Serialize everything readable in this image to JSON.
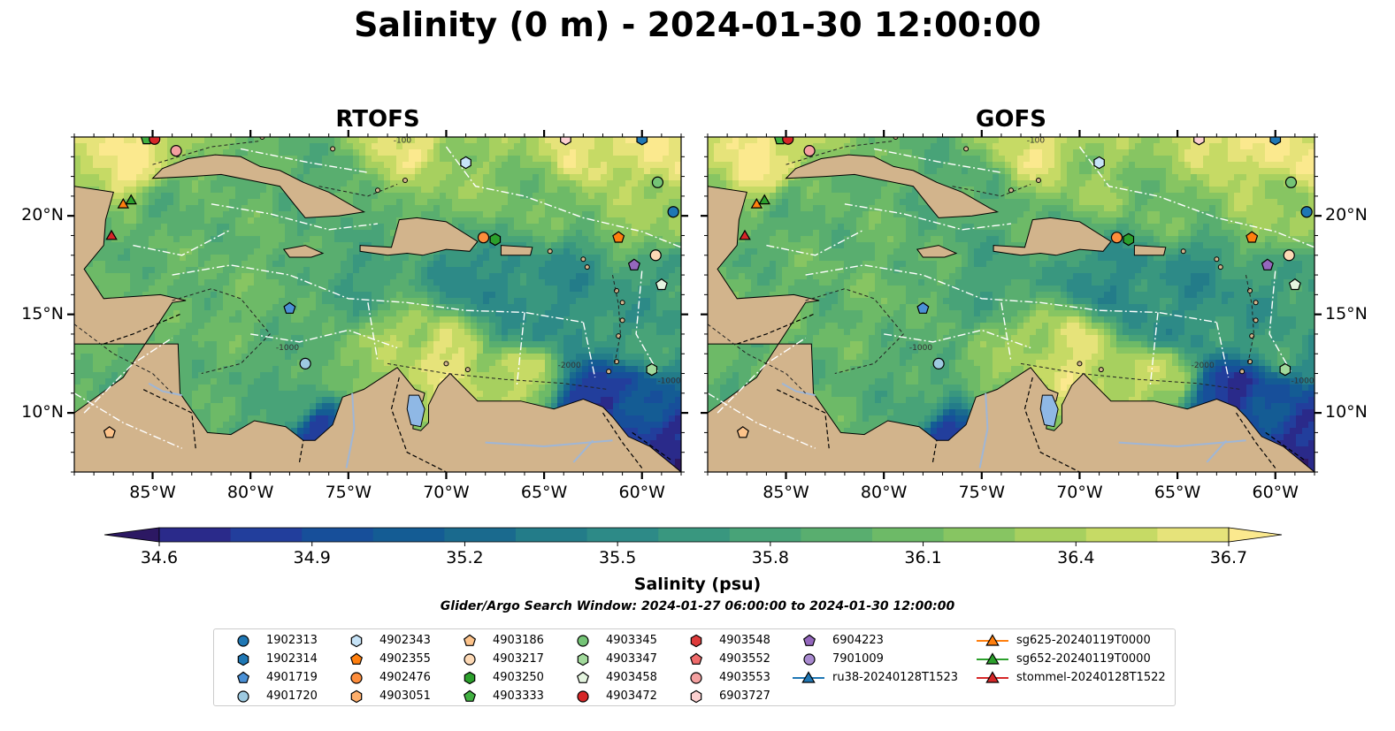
{
  "title": "Salinity (0 m) - 2024-01-30 12:00:00",
  "panels": [
    {
      "title": "RTOFS"
    },
    {
      "title": "GOFS"
    }
  ],
  "map": {
    "lon_range": [
      -89,
      -58
    ],
    "lat_range": [
      7,
      24
    ],
    "lon_ticks": [
      "85°W",
      "80°W",
      "75°W",
      "70°W",
      "65°W",
      "60°W"
    ],
    "lat_ticks": [
      "20°N",
      "15°N",
      "10°N"
    ],
    "land_color": "#d2b48c",
    "water_color": "#8fb8e5",
    "contour_labels": [
      "-100",
      "-1000",
      "-2000"
    ]
  },
  "colorbar": {
    "label": "Salinity (psu)",
    "ticks": [
      "34.6",
      "34.9",
      "35.2",
      "35.5",
      "35.8",
      "36.1",
      "36.4",
      "36.7"
    ],
    "colors": [
      "#2c1863",
      "#2a2a8a",
      "#223e9c",
      "#174f9a",
      "#145c94",
      "#1a6a8e",
      "#237c89",
      "#2d8a87",
      "#39977f",
      "#48a378",
      "#59ae6f",
      "#6dba67",
      "#87c562",
      "#a7d05f",
      "#c6da65",
      "#e6e37a",
      "#fbe98e"
    ]
  },
  "search_window": "Glider/Argo Search Window: 2024-01-27 06:00:00 to 2024-01-30 12:00:00",
  "legend": [
    {
      "label": "1902313",
      "marker": "circle",
      "color": "#1f77b4"
    },
    {
      "label": "1902314",
      "marker": "hexagon",
      "color": "#1f77b4"
    },
    {
      "label": "4901719",
      "marker": "pentagon",
      "color": "#4a90d6"
    },
    {
      "label": "4901720",
      "marker": "circle",
      "color": "#9ecae1"
    },
    {
      "label": "4902343",
      "marker": "hexagon",
      "color": "#c6e3f7"
    },
    {
      "label": "4902355",
      "marker": "pentagon",
      "color": "#ff7f0e"
    },
    {
      "label": "4902476",
      "marker": "circle",
      "color": "#fd8d3c"
    },
    {
      "label": "4903051",
      "marker": "hexagon",
      "color": "#fdae6b"
    },
    {
      "label": "4903186",
      "marker": "pentagon",
      "color": "#fdc38a"
    },
    {
      "label": "4903217",
      "marker": "circle",
      "color": "#fdd9b5"
    },
    {
      "label": "4903250",
      "marker": "hexagon",
      "color": "#2ca02c"
    },
    {
      "label": "4903333",
      "marker": "pentagon",
      "color": "#41b041"
    },
    {
      "label": "4903345",
      "marker": "circle",
      "color": "#74c476"
    },
    {
      "label": "4903347",
      "marker": "hexagon",
      "color": "#a1d99b"
    },
    {
      "label": "4903458",
      "marker": "pentagon",
      "color": "#e5f5e0"
    },
    {
      "label": "4903472",
      "marker": "circle",
      "color": "#d62728"
    },
    {
      "label": "4903548",
      "marker": "hexagon",
      "color": "#de3b3b"
    },
    {
      "label": "4903552",
      "marker": "pentagon",
      "color": "#f06b6b"
    },
    {
      "label": "4903553",
      "marker": "circle",
      "color": "#f4a0a0"
    },
    {
      "label": "6903727",
      "marker": "hexagon",
      "color": "#fcd0d0"
    },
    {
      "label": "6904223",
      "marker": "pentagon",
      "color": "#9467bd"
    },
    {
      "label": "7901009",
      "marker": "circle",
      "color": "#a98ad0"
    },
    {
      "label": "ru38-20240128T1523",
      "marker": "triangle-line",
      "color": "#1f77b4"
    },
    {
      "label": "sg625-20240119T0000",
      "marker": "triangle-line",
      "color": "#ff7f0e"
    },
    {
      "label": "sg652-20240119T0000",
      "marker": "triangle-line",
      "color": "#2ca02c"
    },
    {
      "label": "stommel-20240128T1522",
      "marker": "triangle-line",
      "color": "#d62728"
    }
  ],
  "observations": [
    {
      "id": "1902313",
      "lon": -58.4,
      "lat": 20.2
    },
    {
      "id": "1902314",
      "lon": -60.0,
      "lat": 23.9
    },
    {
      "id": "4901719",
      "lon": -78.0,
      "lat": 15.3
    },
    {
      "id": "4901720",
      "lon": -77.2,
      "lat": 12.5
    },
    {
      "id": "4902343",
      "lon": -69.0,
      "lat": 22.7
    },
    {
      "id": "4902355",
      "lon": -61.2,
      "lat": 18.9
    },
    {
      "id": "4902476",
      "lon": -68.1,
      "lat": 18.9
    },
    {
      "id": "4903186",
      "lon": -87.2,
      "lat": 9.0
    },
    {
      "id": "4903217",
      "lon": -59.3,
      "lat": 18.0
    },
    {
      "id": "4903250",
      "lon": -67.5,
      "lat": 18.8
    },
    {
      "id": "4903333",
      "lon": -85.3,
      "lat": 23.9
    },
    {
      "id": "4903345",
      "lon": -59.2,
      "lat": 21.7
    },
    {
      "id": "4903347",
      "lon": -59.5,
      "lat": 12.2
    },
    {
      "id": "4903458",
      "lon": -59.0,
      "lat": 16.5
    },
    {
      "id": "4903472",
      "lon": -84.9,
      "lat": 23.9
    },
    {
      "id": "4903553",
      "lon": -83.8,
      "lat": 23.3
    },
    {
      "id": "6903727",
      "lon": -63.9,
      "lat": 23.9
    },
    {
      "id": "6904223",
      "lon": -60.4,
      "lat": 17.5
    },
    {
      "id": "sg625-20240119T0000",
      "lon": -86.5,
      "lat": 20.6
    },
    {
      "id": "sg652-20240119T0000",
      "lon": -86.1,
      "lat": 20.8
    },
    {
      "id": "stommel-20240128T1522",
      "lon": -87.1,
      "lat": 19.0
    }
  ]
}
